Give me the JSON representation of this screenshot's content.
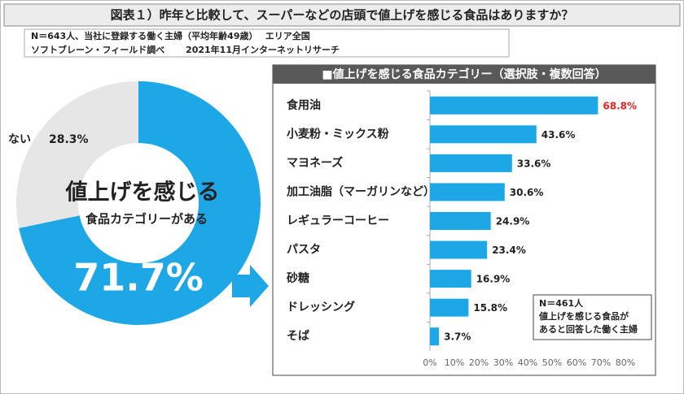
{
  "header": {
    "title": "図表１）昨年と比較して、スーパーなどの店頭で値上げを感じる食品はありますか？",
    "notes": [
      "N＝643人、当社に登録する働く主婦（平均年齢49歳）　 エリア全国",
      "ソフトブレーン・フィールド調べ　　 2021年11月インターネットリサーチ"
    ]
  },
  "chart_data": [
    {
      "type": "pie",
      "donut": true,
      "center_text": [
        "値上げを感じる",
        "食品カテゴリーがある"
      ],
      "categories": [
        null,
        "ない"
      ],
      "values": [
        71.7,
        28.3
      ],
      "value_labels": [
        "71.7%",
        "28.3%"
      ],
      "colors": [
        "#1ea7e6",
        "#e6e6e6"
      ]
    },
    {
      "type": "bar",
      "orientation": "horizontal",
      "title": "■値上げを感じる食品カテゴリー（選択肢・複数回答）",
      "categories": [
        "食用油",
        "小麦粉・ミックス粉",
        "マヨネーズ",
        "加工油脂（マーガリンなど）",
        "レギュラーコーヒー",
        "パスタ",
        "砂糖",
        "ドレッシング",
        "そば"
      ],
      "values": [
        68.8,
        43.6,
        33.6,
        30.6,
        24.9,
        23.4,
        16.9,
        15.8,
        3.7
      ],
      "value_labels": [
        "68.8%",
        "43.6%",
        "33.6%",
        "30.6%",
        "24.9%",
        "23.4%",
        "16.9%",
        "15.8%",
        "3.7%"
      ],
      "value_label_colors": [
        "#e52421",
        "#222222",
        "#222222",
        "#222222",
        "#222222",
        "#222222",
        "#222222",
        "#222222",
        "#222222"
      ],
      "color": "#1ea7e6",
      "xlim": [
        0,
        80
      ],
      "xticks": [
        {
          "value": 0,
          "label": "0%"
        },
        {
          "value": 10,
          "label": "10%"
        },
        {
          "value": 20,
          "label": "20%"
        },
        {
          "value": 30,
          "label": "30%"
        },
        {
          "value": 40,
          "label": "40%"
        },
        {
          "value": 50,
          "label": "50%"
        },
        {
          "value": 60,
          "label": "60%"
        },
        {
          "value": 70,
          "label": "70%"
        },
        {
          "value": 80,
          "label": "80%"
        }
      ],
      "grid": false,
      "annotation": [
        "N＝461人",
        "値上げを感じる食品が",
        "あると回答した働く主婦"
      ]
    }
  ]
}
